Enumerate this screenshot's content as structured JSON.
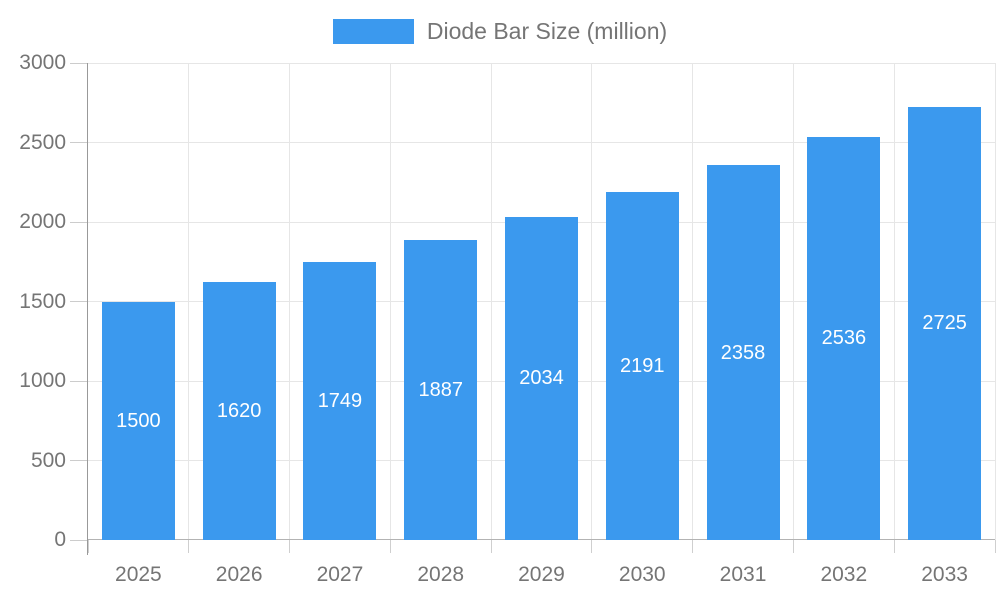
{
  "chart_data": {
    "type": "bar",
    "title": "Diode Bar Size (million)",
    "legend": {
      "label": "Diode Bar Size (million)",
      "position": "top"
    },
    "categories": [
      "2025",
      "2026",
      "2027",
      "2028",
      "2029",
      "2030",
      "2031",
      "2032",
      "2033"
    ],
    "values": [
      1500,
      1620,
      1749,
      1887,
      2034,
      2191,
      2358,
      2536,
      2725
    ],
    "xlabel": "",
    "ylabel": "",
    "ylim": [
      0,
      3000
    ],
    "y_ticks": [
      0,
      500,
      1000,
      1500,
      2000,
      2500,
      3000
    ],
    "grid": true,
    "bar_color": "#3b99ee",
    "value_label_color": "#ffffff",
    "axis_text_color": "#757575",
    "gridline_color": "#e6e6e6",
    "axis_line_color": "#999999"
  }
}
